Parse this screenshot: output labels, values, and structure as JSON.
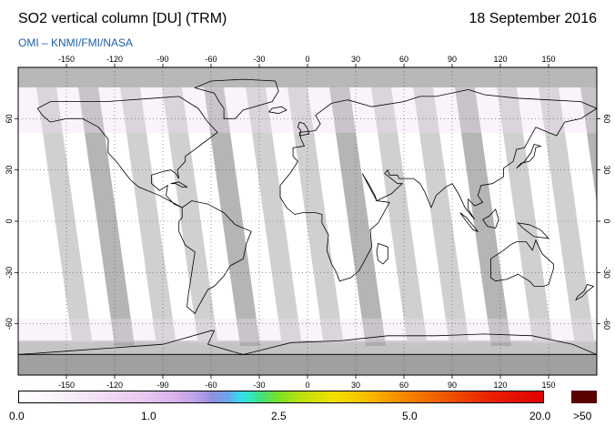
{
  "header": {
    "title": "SO2 vertical column [DU] (TRM)",
    "date": "18 September 2016",
    "credit": "OMI  –  KNMI/FMI/NASA"
  },
  "map": {
    "projection": "equirectangular",
    "lon_range": [
      -180,
      180
    ],
    "lat_range": [
      -90,
      90
    ],
    "lon_ticks": [
      "-150",
      "-120",
      "-90",
      "-60",
      "-30",
      "0",
      "30",
      "60",
      "90",
      "120",
      "150"
    ],
    "lat_ticks": [
      "60",
      "30",
      "0",
      "-30",
      "-60"
    ],
    "grid": "dotted",
    "colors": {
      "no_data_swath": "#c8c8c8",
      "night_gap": "#a8a8a8",
      "polar_no_data": "#b4b4b4",
      "coastline": "#000000",
      "low_so2": "#f4e6f8"
    }
  },
  "colorbar": {
    "labels": [
      "0.0",
      "1.0",
      "2.5",
      "5.0",
      "20.0",
      ">50"
    ],
    "max_color": "#5a0000"
  }
}
